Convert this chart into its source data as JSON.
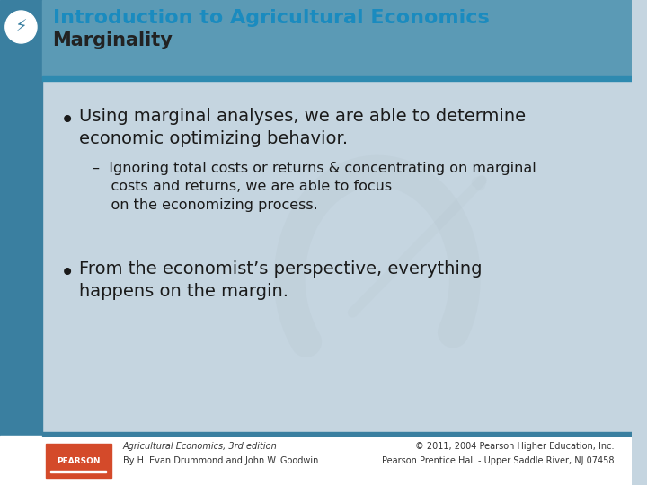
{
  "title_line1": "Introduction to Agricultural Economics",
  "title_line2": "Marginality",
  "bg_color": "#c5d5e0",
  "header_bg": "#5b9ab5",
  "sidebar_color": "#3a7fa0",
  "title_color1": "#1a8bbf",
  "title_color2": "#222222",
  "header_line_color": "#2e8ab0",
  "bullet1": "Using marginal analyses, we are able to determine economic optimizing behavior.",
  "sub_bullet": "Ignoring total costs or returns & concentrating on marginal costs and returns, we are able to focus on the economizing process.",
  "bullet2": "From the economist’s perspective, everything happens on the margin.",
  "footer_left1": "Agricultural Economics, 3rd edition",
  "footer_left2": "By H. Evan Drummond and John W. Goodwin",
  "footer_right1": "© 2011, 2004 Pearson Higher Education, Inc.",
  "footer_right2": "Pearson Prentice Hall - Upper Saddle River, NJ 07458",
  "footer_bg": "#ffffff",
  "footer_bar_color": "#3a7fa0",
  "pearson_box_color": "#d44a2a",
  "text_color": "#1a1a1a",
  "watermark_color": "#b0bfc8"
}
